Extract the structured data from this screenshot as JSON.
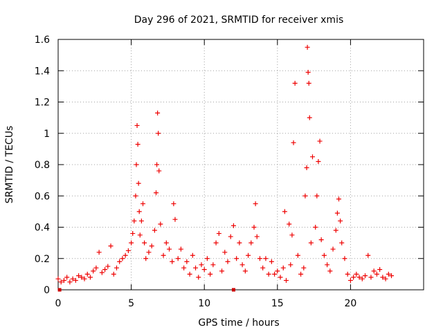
{
  "chart_data": {
    "type": "scatter",
    "title": "Day 296 of 2021, SRMTID for receiver xmis",
    "xlabel": "GPS time / hours",
    "ylabel": "SRMTID / TECUs",
    "xlim": [
      0,
      25
    ],
    "ylim": [
      0,
      1.6
    ],
    "xticks": [
      0,
      5,
      10,
      15,
      20
    ],
    "xtick_labels": [
      "0",
      "5",
      "10",
      "15",
      "20"
    ],
    "yticks": [
      0,
      0.2,
      0.4,
      0.6,
      0.8,
      1.0,
      1.2,
      1.4,
      1.6
    ],
    "ytick_labels": [
      "0",
      "0.2",
      "0.4",
      "0.6",
      "0.8",
      "1",
      "1.2",
      "1.4",
      "1.6"
    ],
    "grid": true,
    "marker": "+",
    "color": "#ee0000",
    "axis_markers_x": [
      0.1,
      12.0
    ],
    "series": [
      {
        "name": "SRMTID",
        "x": [
          0.0,
          0.2,
          0.4,
          0.6,
          0.8,
          1.0,
          1.2,
          1.4,
          1.6,
          1.8,
          2.0,
          2.2,
          2.4,
          2.6,
          2.8,
          3.0,
          3.2,
          3.4,
          3.6,
          3.8,
          4.0,
          4.2,
          4.4,
          4.6,
          4.8,
          5.0,
          5.1,
          5.2,
          5.3,
          5.35,
          5.4,
          5.45,
          5.5,
          5.55,
          5.6,
          5.7,
          5.8,
          5.9,
          6.0,
          6.2,
          6.4,
          6.6,
          6.7,
          6.75,
          6.8,
          6.85,
          6.9,
          7.0,
          7.2,
          7.4,
          7.6,
          7.8,
          7.9,
          8.0,
          8.2,
          8.4,
          8.6,
          8.8,
          9.0,
          9.2,
          9.4,
          9.6,
          9.8,
          10.0,
          10.2,
          10.4,
          10.6,
          10.8,
          11.0,
          11.2,
          11.4,
          11.6,
          11.8,
          12.0,
          12.2,
          12.4,
          12.6,
          12.8,
          13.0,
          13.2,
          13.4,
          13.5,
          13.6,
          13.8,
          14.0,
          14.2,
          14.4,
          14.6,
          14.8,
          15.0,
          15.2,
          15.4,
          15.5,
          15.6,
          15.8,
          15.9,
          16.0,
          16.1,
          16.2,
          16.4,
          16.6,
          16.8,
          16.9,
          17.0,
          17.05,
          17.1,
          17.15,
          17.2,
          17.3,
          17.4,
          17.6,
          17.7,
          17.8,
          17.9,
          18.0,
          18.2,
          18.4,
          18.6,
          18.8,
          19.0,
          19.1,
          19.2,
          19.3,
          19.4,
          19.6,
          19.8,
          20.0,
          20.2,
          20.4,
          20.6,
          20.8,
          21.0,
          21.2,
          21.4,
          21.6,
          21.8,
          22.0,
          22.2,
          22.4,
          22.6,
          22.8
        ],
        "y": [
          0.07,
          0.05,
          0.06,
          0.08,
          0.05,
          0.07,
          0.06,
          0.09,
          0.08,
          0.07,
          0.1,
          0.08,
          0.12,
          0.14,
          0.24,
          0.11,
          0.13,
          0.15,
          0.28,
          0.1,
          0.14,
          0.18,
          0.2,
          0.22,
          0.25,
          0.3,
          0.36,
          0.44,
          0.6,
          0.8,
          1.05,
          0.93,
          0.68,
          0.5,
          0.35,
          0.44,
          0.55,
          0.3,
          0.2,
          0.24,
          0.28,
          0.38,
          0.62,
          0.8,
          1.13,
          1.0,
          0.76,
          0.42,
          0.22,
          0.3,
          0.26,
          0.18,
          0.55,
          0.45,
          0.2,
          0.26,
          0.14,
          0.18,
          0.1,
          0.22,
          0.14,
          0.08,
          0.16,
          0.13,
          0.2,
          0.1,
          0.16,
          0.3,
          0.36,
          0.12,
          0.24,
          0.18,
          0.34,
          0.41,
          0.2,
          0.3,
          0.16,
          0.12,
          0.22,
          0.3,
          0.4,
          0.55,
          0.34,
          0.2,
          0.14,
          0.2,
          0.1,
          0.18,
          0.1,
          0.12,
          0.08,
          0.14,
          0.5,
          0.06,
          0.42,
          0.16,
          0.35,
          0.94,
          1.32,
          0.22,
          0.1,
          0.14,
          0.6,
          0.78,
          1.55,
          1.39,
          1.32,
          1.1,
          0.3,
          0.85,
          0.4,
          0.6,
          0.82,
          0.95,
          0.32,
          0.22,
          0.16,
          0.12,
          0.26,
          0.38,
          0.49,
          0.58,
          0.44,
          0.3,
          0.2,
          0.1,
          0.06,
          0.08,
          0.1,
          0.08,
          0.07,
          0.09,
          0.22,
          0.08,
          0.12,
          0.1,
          0.13,
          0.08,
          0.07,
          0.1,
          0.09
        ]
      }
    ]
  }
}
